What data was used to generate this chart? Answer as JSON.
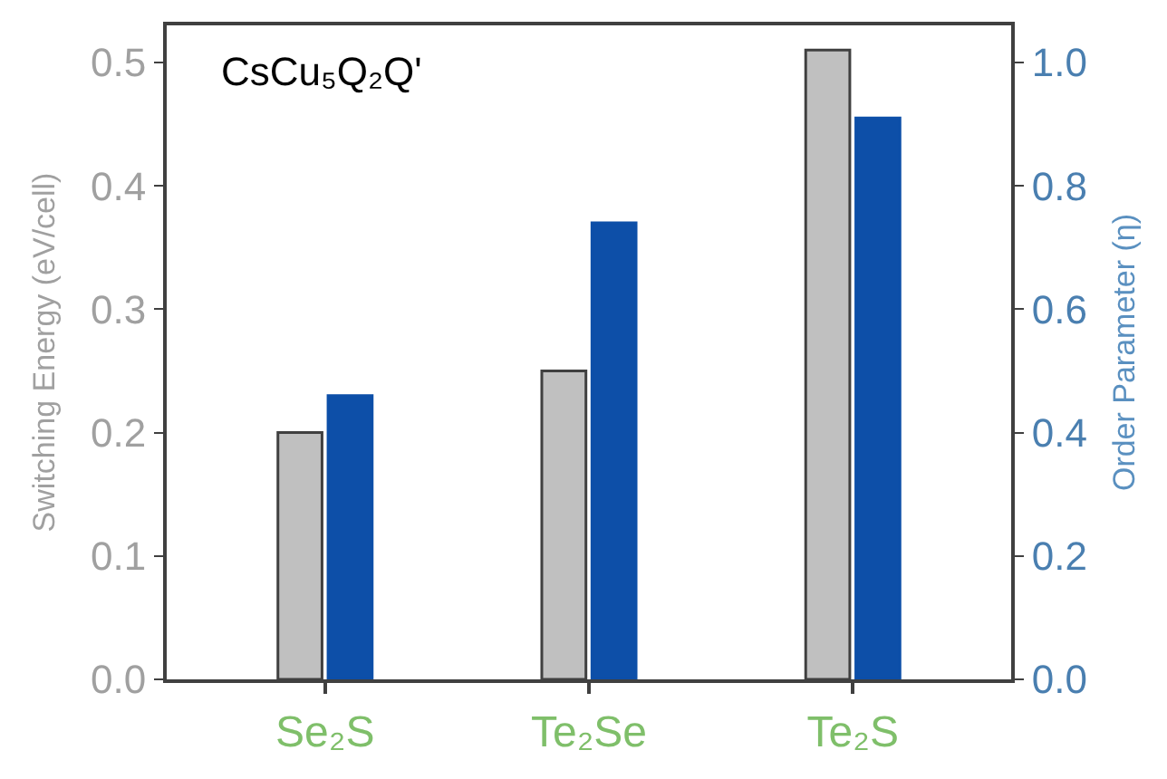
{
  "chart_data": {
    "type": "bar",
    "title": "CsCu₅Q₂Q'",
    "categories": [
      "Se₂S",
      "Te₂Se",
      "Te₂S"
    ],
    "series": [
      {
        "color": "#c0c0c0",
        "values": [
          0.2,
          0.25,
          0.51
        ]
      },
      {
        "color": "#0d4fa8",
        "values": [
          0.46,
          0.74,
          0.91
        ],
        "axis": "y2"
      }
    ],
    "ylabel": "Switching Energy (eV/cell)",
    "y2label": "Order Parameter (η)",
    "ylim": [
      0,
      0.53
    ],
    "yticks": [
      {
        "value": 0,
        "label": "0.0"
      },
      0.1,
      0.2,
      0.3,
      0.4,
      0.5
    ],
    "y2lim": [
      0,
      1.06
    ],
    "y2ticks": [
      {
        "value": 0,
        "label": "0.0"
      },
      0.2,
      0.4,
      0.6,
      0.8,
      {
        "value": 1,
        "label": "1.0"
      }
    ]
  }
}
